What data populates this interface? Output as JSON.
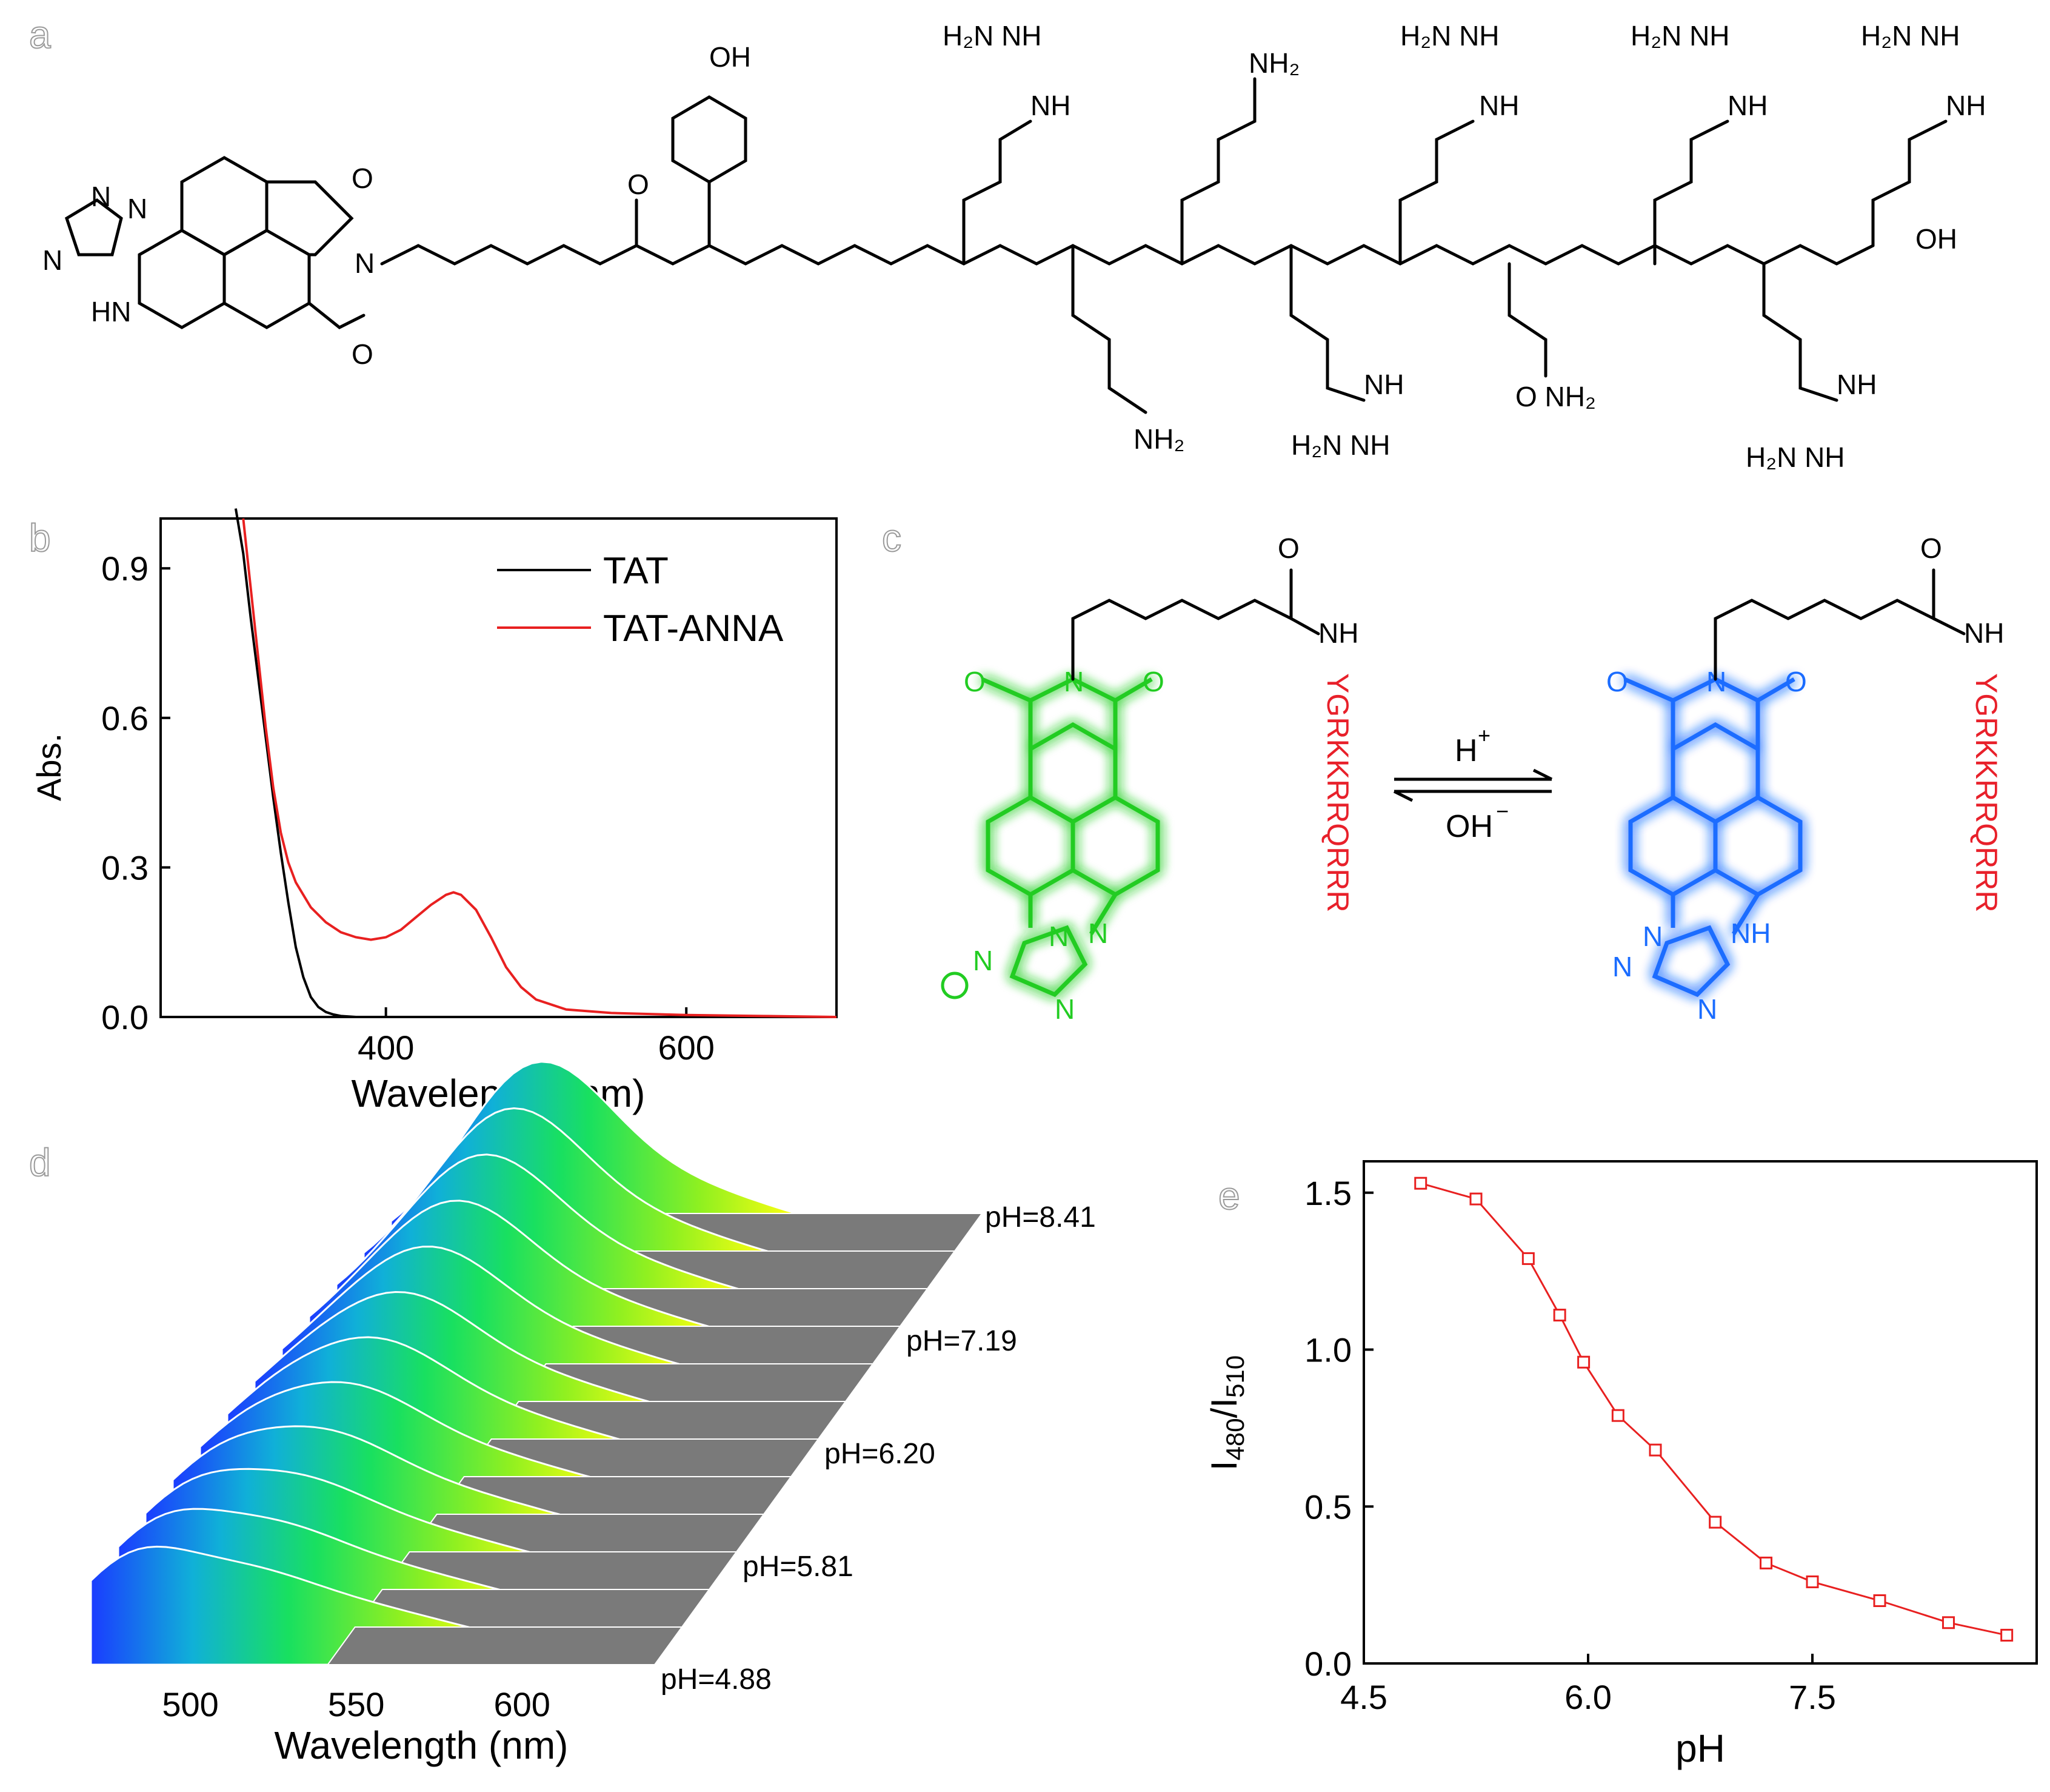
{
  "panels": {
    "a": {
      "letter": "a"
    },
    "b": {
      "letter": "b"
    },
    "c": {
      "letter": "c"
    },
    "d": {
      "letter": "d"
    },
    "e": {
      "letter": "e"
    }
  },
  "structure_a": {
    "labels": [
      "OH",
      "H2N",
      "NH",
      "NH2",
      "O",
      "N",
      "HN",
      "H",
      "OH",
      "NH2"
    ]
  },
  "scheme_c": {
    "peptide_left": "YGRKKRRQRRR",
    "peptide_right": "YGRKKRRQRRR",
    "arrow_top": "H",
    "arrow_top_sup": "+",
    "arrow_bottom": "OH",
    "arrow_bottom_sup": "−",
    "left_color": "#22cc22",
    "right_color": "#1a6cff",
    "peptide_color": "#e8202a"
  },
  "chart_data": [
    {
      "panel": "b",
      "type": "line",
      "xlabel": "Wavelength (nm)",
      "ylabel": "Abs.",
      "xlim": [
        250,
        700
      ],
      "ylim": [
        0,
        1.0
      ],
      "xticks": [
        400,
        600
      ],
      "yticks": [
        0.0,
        0.3,
        0.6,
        0.9
      ],
      "xtick_labels": [
        "400",
        "600"
      ],
      "ytick_labels": [
        "0.0",
        "0.3",
        "0.6",
        "0.9"
      ],
      "legend_position": "top-right",
      "series": [
        {
          "name": "TAT",
          "color": "#000000",
          "x": [
            300,
            305,
            310,
            315,
            320,
            325,
            330,
            335,
            340,
            345,
            350,
            355,
            360,
            365,
            370,
            380,
            400,
            450,
            500,
            600,
            700
          ],
          "y": [
            1.05,
            0.93,
            0.8,
            0.68,
            0.56,
            0.44,
            0.33,
            0.23,
            0.14,
            0.08,
            0.04,
            0.02,
            0.01,
            0.005,
            0.002,
            0.0,
            0.0,
            0.0,
            0.0,
            0.0,
            0.0
          ]
        },
        {
          "name": "TAT-ANNA",
          "color": "#e82020",
          "x": [
            305,
            310,
            315,
            320,
            325,
            330,
            335,
            340,
            350,
            360,
            370,
            380,
            390,
            400,
            410,
            420,
            430,
            440,
            445,
            450,
            460,
            470,
            480,
            490,
            500,
            520,
            550,
            600,
            650,
            700
          ],
          "y": [
            1.0,
            0.86,
            0.72,
            0.58,
            0.46,
            0.37,
            0.31,
            0.27,
            0.22,
            0.19,
            0.17,
            0.16,
            0.155,
            0.16,
            0.175,
            0.2,
            0.225,
            0.245,
            0.25,
            0.245,
            0.215,
            0.16,
            0.1,
            0.06,
            0.035,
            0.015,
            0.008,
            0.004,
            0.002,
            0.0
          ]
        }
      ]
    },
    {
      "panel": "d",
      "type": "area",
      "xlabel": "Wavelength (nm)",
      "xlim": [
        470,
        640
      ],
      "xticks": [
        500,
        550,
        600
      ],
      "xtick_labels": [
        "500",
        "550",
        "600"
      ],
      "series_labels": [
        "pH=4.88",
        "pH=5.81",
        "pH=6.20",
        "pH=7.19",
        "pH=8.41"
      ],
      "n_spectra": 12
    },
    {
      "panel": "e",
      "type": "scatter",
      "xlabel": "pH",
      "ylabel": "I480/I510",
      "ylabel_main": "I",
      "ylabel_sub1": "480",
      "ylabel_mid": "/I",
      "ylabel_sub2": "510",
      "xlim": [
        4.5,
        9.0
      ],
      "ylim": [
        0.0,
        1.6
      ],
      "xticks": [
        4.5,
        6.0,
        7.5
      ],
      "yticks": [
        0.0,
        0.5,
        1.0,
        1.5
      ],
      "xtick_labels": [
        "4.5",
        "6.0",
        "7.5"
      ],
      "ytick_labels": [
        "0.0",
        "0.5",
        "1.0",
        "1.5"
      ],
      "series": [
        {
          "color": "#e82020",
          "x": [
            4.88,
            5.25,
            5.6,
            5.81,
            5.97,
            6.2,
            6.45,
            6.85,
            7.19,
            7.5,
            7.95,
            8.41,
            8.8
          ],
          "y": [
            1.53,
            1.48,
            1.29,
            1.11,
            0.96,
            0.79,
            0.68,
            0.45,
            0.32,
            0.26,
            0.2,
            0.13,
            0.09
          ]
        }
      ]
    }
  ]
}
